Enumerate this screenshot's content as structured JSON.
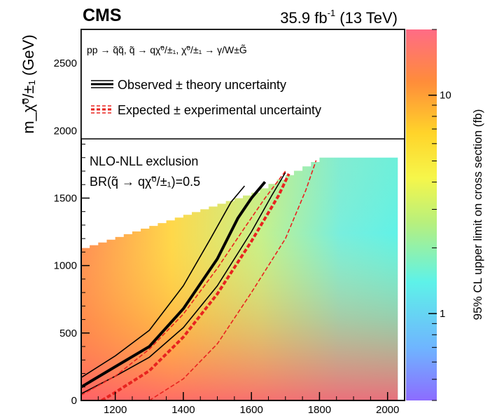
{
  "header": {
    "experiment": "CMS",
    "luminosity": "35.9 fb",
    "luminosity_exponent": "-1",
    "energy": " (13 TeV)"
  },
  "legend": {
    "process": "pp → q̃q̃, q̃ → qχ̃⁰/±₁, χ̃⁰/±₁ → γ/W±G̃",
    "observed_label": "Observed ± theory uncertainty",
    "expected_label": "Expected ± experimental uncertainty"
  },
  "annotation": {
    "line1": "NLO-NLL exclusion",
    "line2": "BR(q̃ → qχ̃⁰/±₁)=0.5"
  },
  "colors": {
    "observed": "#000000",
    "expected": "#e8231f",
    "palette": [
      "#ff6b86",
      "#ff8c3a",
      "#ffd42a",
      "#f6f64a",
      "#b8f07c",
      "#5ef2e8",
      "#6fb4ff",
      "#8c6cff"
    ]
  },
  "chart_data": {
    "type": "heatmap",
    "title": "",
    "xlabel": "",
    "ylabel": "m_χ̃⁰/±₁ (GeV)",
    "zlabel": "95% CL upper limit on cross section (fb)",
    "xlim": [
      1100,
      2050
    ],
    "ylim": [
      0,
      2750
    ],
    "zlim": [
      0.4,
      20
    ],
    "zscale": "log",
    "x_ticks": [
      "1200",
      "1400",
      "1600",
      "1800",
      "2000"
    ],
    "y_ticks": [
      "0",
      "500",
      "1000",
      "1500",
      "2000",
      "2500"
    ],
    "z_ticks": [
      "1",
      "10"
    ],
    "grid": false,
    "legend_position": "top",
    "heatmap_region": {
      "diagonal_boundary": [
        [
          1100,
          1130
        ],
        [
          1600,
          1540
        ],
        [
          1800,
          1800
        ]
      ],
      "x_max": 2030,
      "y_max": 1980,
      "note": "limit values decrease with increasing squark mass and increase toward low neutralino mass"
    },
    "series": [
      {
        "name": "Observed ± theory uncertainty",
        "style": "solid-thick",
        "x": [
          1100,
          1200,
          1300,
          1400,
          1500,
          1560,
          1600,
          1640
        ],
        "y": [
          100,
          250,
          400,
          680,
          1050,
          1350,
          1500,
          1620
        ]
      },
      {
        "style": "solid-thin",
        "x": [
          1100,
          1200,
          1300,
          1400,
          1480,
          1540,
          1580
        ],
        "y": [
          170,
          330,
          520,
          850,
          1200,
          1470,
          1590
        ]
      },
      {
        "style": "solid-thin",
        "x": [
          1100,
          1200,
          1300,
          1400,
          1500,
          1600,
          1660,
          1700
        ],
        "y": [
          50,
          180,
          320,
          540,
          850,
          1250,
          1520,
          1690
        ]
      },
      {
        "name": "Expected ± experimental uncertainty",
        "style": "dashed-thick",
        "x": [
          1160,
          1200,
          1300,
          1400,
          1500,
          1600,
          1680,
          1710
        ],
        "y": [
          0,
          60,
          220,
          470,
          790,
          1180,
          1520,
          1680
        ]
      },
      {
        "style": "dashed-thin",
        "x": [
          1100,
          1200,
          1300,
          1400,
          1500,
          1580,
          1640,
          1700
        ],
        "y": [
          40,
          180,
          380,
          640,
          980,
          1280,
          1500,
          1700
        ]
      },
      {
        "style": "dashed-thin",
        "x": [
          1300,
          1400,
          1500,
          1600,
          1700,
          1760,
          1790
        ],
        "y": [
          0,
          160,
          420,
          800,
          1200,
          1560,
          1780
        ]
      }
    ]
  }
}
